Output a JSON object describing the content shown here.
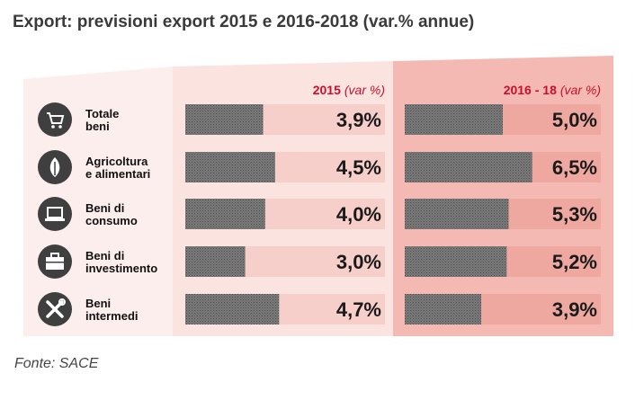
{
  "title": "Export: previsioni export 2015 e 2016-2018 (var.% annue)",
  "source": "Fonte: SACE",
  "colors": {
    "accent": "#c8102e",
    "panel_left": "#fbe3df",
    "panel_right": "#f3b2ab",
    "bar": "#6b6b6b",
    "track_left": "#f7d2cd",
    "track_right": "#f0aaa2",
    "icon_circle": "#3f3f3f"
  },
  "chart_data": {
    "type": "bar",
    "title": "Export: previsioni export 2015 e 2016-2018 (var.% annue)",
    "categories": [
      "Totale beni",
      "Agricoltura e alimentari",
      "Beni di consumo",
      "Beni di investimento",
      "Beni intermedi"
    ],
    "category_lines": [
      [
        "Totale",
        "beni"
      ],
      [
        "Agricoltura",
        "e alimentari"
      ],
      [
        "Beni di",
        "consumo"
      ],
      [
        "Beni di",
        "investimento"
      ],
      [
        "Beni",
        "intermedi"
      ]
    ],
    "category_icons": [
      "shopping-cart-icon",
      "grain-icon",
      "laptop-icon",
      "briefcase-icon",
      "tools-icon"
    ],
    "series": [
      {
        "name": "2015",
        "unit": "(var %)",
        "values": [
          3.9,
          4.5,
          4.0,
          3.0,
          4.7
        ],
        "labels": [
          "3,9%",
          "4,5%",
          "4,0%",
          "3,0%",
          "4,7%"
        ]
      },
      {
        "name": "2016 - 18",
        "unit": "(var %)",
        "values": [
          5.0,
          6.5,
          5.3,
          5.2,
          3.9
        ],
        "labels": [
          "5,0%",
          "6,5%",
          "5,3%",
          "5,2%",
          "3,9%"
        ]
      }
    ],
    "xlim": [
      0,
      10
    ],
    "grid": false,
    "legend": "column headers at top"
  }
}
